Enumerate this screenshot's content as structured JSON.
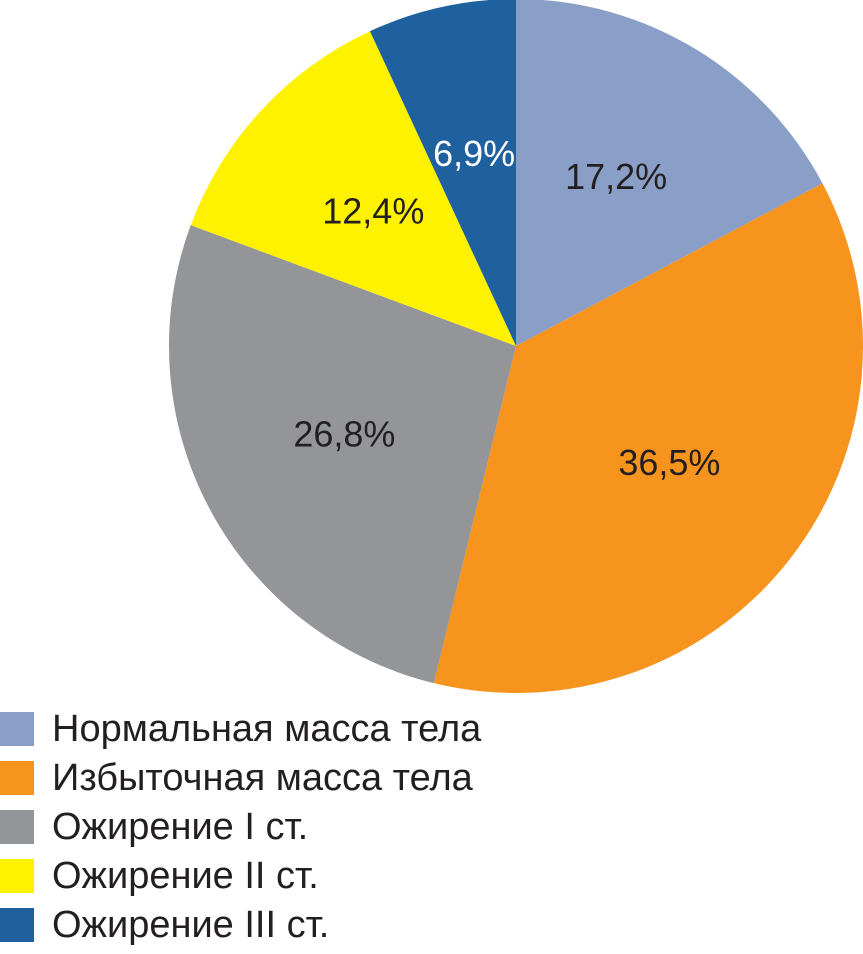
{
  "chart_data": {
    "type": "pie",
    "categories": [
      "Нормальная масса тела",
      "Избыточная масса тела",
      "Ожирение I ст.",
      "Ожирение II ст.",
      "Ожирение III ст."
    ],
    "values": [
      17.2,
      36.5,
      26.8,
      12.4,
      6.9
    ],
    "labels": [
      "17,2%",
      "36,5%",
      "26,8%",
      "12,4%",
      "6,9%"
    ],
    "colors": [
      "#8a9fc7",
      "#f7941d",
      "#939598",
      "#fff200",
      "#1f609e"
    ],
    "label_colors": [
      "#231f20",
      "#231f20",
      "#231f20",
      "#231f20",
      "#ffffff"
    ],
    "start_angle_deg": 0,
    "direction": "clockwise",
    "legend_position": "bottom-left"
  },
  "legend": {
    "items": [
      {
        "label": "Нормальная масса тела",
        "color": "#8a9fc7"
      },
      {
        "label": "Избыточная масса тела",
        "color": "#f7941d"
      },
      {
        "label": "Ожирение I ст.",
        "color": "#939598"
      },
      {
        "label": "Ожирение II ст.",
        "color": "#fff200"
      },
      {
        "label": "Ожирение III ст.",
        "color": "#1f609e"
      }
    ]
  }
}
